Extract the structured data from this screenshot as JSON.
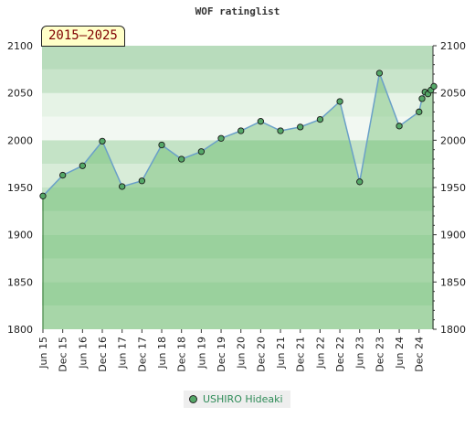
{
  "chart_data": {
    "type": "area",
    "title": "WOF ratinglist",
    "badge": "2015–2025",
    "ylim": [
      1800,
      2100
    ],
    "yticks": [
      1800,
      1850,
      1900,
      1950,
      2000,
      2050,
      2100
    ],
    "x_labels": [
      "Jun 15",
      "Dec 15",
      "Jun 16",
      "Dec 16",
      "Jun 17",
      "Dec 17",
      "Jun 18",
      "Dec 18",
      "Jun 19",
      "Dec 19",
      "Jun 20",
      "Dec 20",
      "Jun 21",
      "Dec 21",
      "Jun 22",
      "Dec 22",
      "Jun 23",
      "Dec 23",
      "Jun 24",
      "Dec 24"
    ],
    "series": [
      {
        "name": "USHIRO Hideaki",
        "color": "#55a868",
        "line_color": "#6aa0c8",
        "points": [
          {
            "x": 0.0,
            "y": 1941
          },
          {
            "x": 1.0,
            "y": 1963
          },
          {
            "x": 2.0,
            "y": 1973
          },
          {
            "x": 3.0,
            "y": 1999
          },
          {
            "x": 4.0,
            "y": 1951
          },
          {
            "x": 5.0,
            "y": 1957
          },
          {
            "x": 6.0,
            "y": 1995
          },
          {
            "x": 7.0,
            "y": 1980
          },
          {
            "x": 8.0,
            "y": 1988
          },
          {
            "x": 9.0,
            "y": 2002
          },
          {
            "x": 10.0,
            "y": 2010
          },
          {
            "x": 11.0,
            "y": 2020
          },
          {
            "x": 12.0,
            "y": 2010
          },
          {
            "x": 13.0,
            "y": 2014
          },
          {
            "x": 14.0,
            "y": 2022
          },
          {
            "x": 15.0,
            "y": 2041
          },
          {
            "x": 16.0,
            "y": 1956
          },
          {
            "x": 17.0,
            "y": 2071
          },
          {
            "x": 18.0,
            "y": 2015
          },
          {
            "x": 19.0,
            "y": 2030
          },
          {
            "x": 19.15,
            "y": 2044
          },
          {
            "x": 19.3,
            "y": 2051
          },
          {
            "x": 19.45,
            "y": 2049
          },
          {
            "x": 19.6,
            "y": 2053
          },
          {
            "x": 19.75,
            "y": 2057
          }
        ]
      }
    ],
    "legend_placement": "bottom-center"
  }
}
